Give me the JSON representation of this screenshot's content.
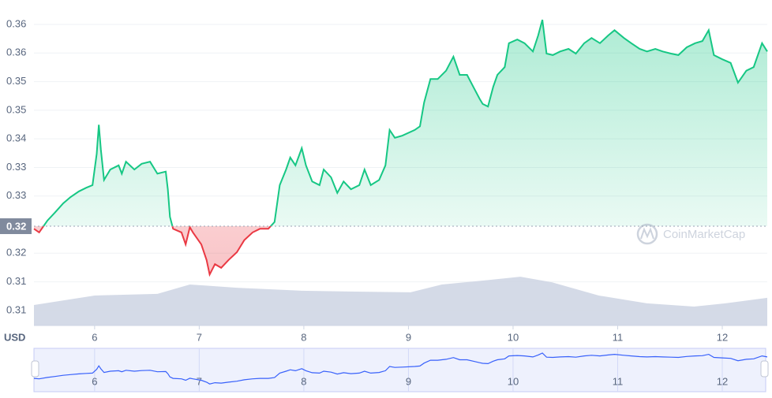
{
  "chart_data": {
    "type": "line",
    "y_unit": "USD",
    "watermark": "CoinMarketCap",
    "reference": {
      "value": 0.3232,
      "label": "0.32"
    },
    "xlim": [
      5.42,
      12.43
    ],
    "xticks": [
      6,
      7,
      8,
      9,
      10,
      11,
      12
    ],
    "ylim": [
      0.3041,
      0.3667
    ],
    "yticks": [
      {
        "value": 0.362,
        "label": "0.36"
      },
      {
        "value": 0.3565,
        "label": "0.36"
      },
      {
        "value": 0.351,
        "label": "0.35"
      },
      {
        "value": 0.3455,
        "label": "0.35"
      },
      {
        "value": 0.34,
        "label": "0.34"
      },
      {
        "value": 0.3345,
        "label": "0.33"
      },
      {
        "value": 0.329,
        "label": "0.33"
      },
      {
        "value": 0.318,
        "label": "0.32"
      },
      {
        "value": 0.3125,
        "label": "0.31"
      },
      {
        "value": 0.307,
        "label": "0.31"
      }
    ],
    "grid": true,
    "x": [
      5.42,
      5.47,
      5.55,
      5.62,
      5.7,
      5.77,
      5.85,
      5.92,
      5.98,
      6.02,
      6.04,
      6.06,
      6.09,
      6.15,
      6.23,
      6.26,
      6.3,
      6.38,
      6.45,
      6.53,
      6.6,
      6.68,
      6.7,
      6.72,
      6.75,
      6.83,
      6.87,
      6.91,
      6.94,
      7.02,
      7.07,
      7.1,
      7.15,
      7.21,
      7.28,
      7.36,
      7.43,
      7.51,
      7.58,
      7.66,
      7.72,
      7.77,
      7.83,
      7.87,
      7.92,
      7.98,
      8.02,
      8.08,
      8.15,
      8.19,
      8.26,
      8.32,
      8.38,
      8.45,
      8.53,
      8.58,
      8.64,
      8.72,
      8.78,
      8.82,
      8.87,
      8.94,
      9.06,
      9.11,
      9.15,
      9.21,
      9.28,
      9.36,
      9.43,
      9.49,
      9.56,
      9.62,
      9.68,
      9.71,
      9.76,
      9.81,
      9.85,
      9.92,
      9.96,
      10.04,
      10.11,
      10.19,
      10.24,
      10.28,
      10.32,
      10.38,
      10.45,
      10.53,
      10.6,
      10.68,
      10.75,
      10.83,
      10.91,
      10.97,
      11.06,
      11.13,
      11.21,
      11.28,
      11.36,
      11.43,
      11.51,
      11.58,
      11.66,
      11.74,
      11.81,
      11.87,
      11.92,
      12.0,
      12.08,
      12.15,
      12.23,
      12.3,
      12.38,
      12.43
    ],
    "series": [
      {
        "color": "#16c784",
        "down_color": "#ea3943",
        "values": [
          0.3227,
          0.322,
          0.3243,
          0.3258,
          0.3276,
          0.3288,
          0.3299,
          0.3306,
          0.3311,
          0.3371,
          0.3427,
          0.3379,
          0.3321,
          0.3341,
          0.3349,
          0.3333,
          0.3356,
          0.3341,
          0.3352,
          0.3356,
          0.3333,
          0.3337,
          0.3303,
          0.325,
          0.3227,
          0.322,
          0.3197,
          0.323,
          0.322,
          0.3197,
          0.3167,
          0.3139,
          0.3159,
          0.3152,
          0.3167,
          0.3182,
          0.3205,
          0.322,
          0.3227,
          0.3227,
          0.324,
          0.3311,
          0.3341,
          0.3364,
          0.3349,
          0.3382,
          0.3349,
          0.3318,
          0.3311,
          0.3341,
          0.3326,
          0.3296,
          0.3318,
          0.3303,
          0.3311,
          0.3341,
          0.3311,
          0.3321,
          0.3349,
          0.3417,
          0.3402,
          0.3406,
          0.3417,
          0.3424,
          0.347,
          0.3515,
          0.3515,
          0.3531,
          0.3558,
          0.3523,
          0.3523,
          0.35,
          0.3477,
          0.3467,
          0.3462,
          0.35,
          0.3523,
          0.3538,
          0.3584,
          0.3591,
          0.3584,
          0.3568,
          0.3599,
          0.3629,
          0.3564,
          0.3561,
          0.3568,
          0.3573,
          0.3564,
          0.3584,
          0.3594,
          0.3584,
          0.3599,
          0.3609,
          0.3594,
          0.3584,
          0.3573,
          0.3568,
          0.3573,
          0.3568,
          0.3564,
          0.3561,
          0.3576,
          0.3584,
          0.3588,
          0.3609,
          0.3561,
          0.3553,
          0.3546,
          0.3508,
          0.3531,
          0.3538,
          0.3584,
          0.3568
        ]
      },
      {
        "type": "area",
        "axis": "y2",
        "color": "#cfd6e4",
        "x": [
          5.42,
          6.0,
          6.6,
          6.91,
          7.36,
          7.96,
          8.49,
          9.02,
          9.32,
          9.77,
          10.07,
          10.37,
          10.82,
          11.28,
          11.73,
          12.03,
          12.43
        ],
        "values": [
          6.3,
          9.2,
          9.7,
          12.6,
          11.6,
          10.7,
          10.4,
          10.2,
          12.6,
          14.0,
          15.0,
          13.3,
          9.2,
          6.8,
          5.8,
          6.8,
          8.5
        ]
      }
    ],
    "y2lim": [
      0,
      100
    ]
  }
}
